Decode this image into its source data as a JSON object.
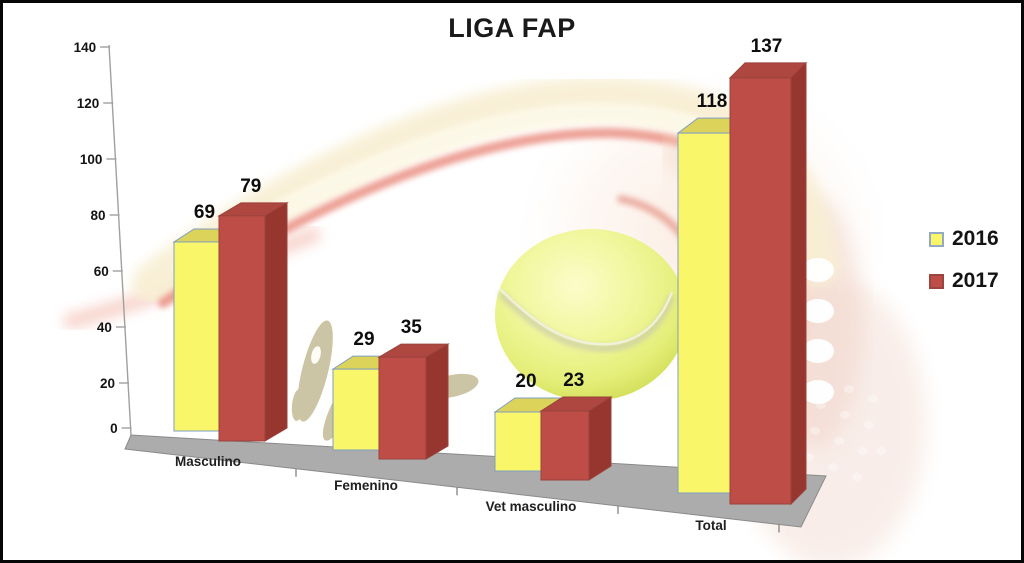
{
  "chart_data": {
    "type": "bar",
    "style": "3d-clustered",
    "title": "LIGA FAP",
    "categories": [
      "Masculino",
      "Femenino",
      "Vet masculino",
      "Total"
    ],
    "series": [
      {
        "name": "2016",
        "color": "#faf669",
        "values": [
          69,
          29,
          20,
          118
        ]
      },
      {
        "name": "2017",
        "color": "#bf4d47",
        "values": [
          79,
          35,
          23,
          137
        ]
      }
    ],
    "data_labels_shown": true,
    "xlabel": "",
    "ylabel": "",
    "ylim": [
      0,
      140
    ],
    "yticks": [
      0,
      20,
      40,
      60,
      80,
      100,
      120,
      140
    ],
    "grid": false,
    "legend": {
      "position": "right",
      "entries": [
        "2016",
        "2017"
      ]
    },
    "background_decorations": [
      "tennis-ball",
      "red-cream-swoosh",
      "white-dots-column",
      "olive-silhouette"
    ]
  }
}
